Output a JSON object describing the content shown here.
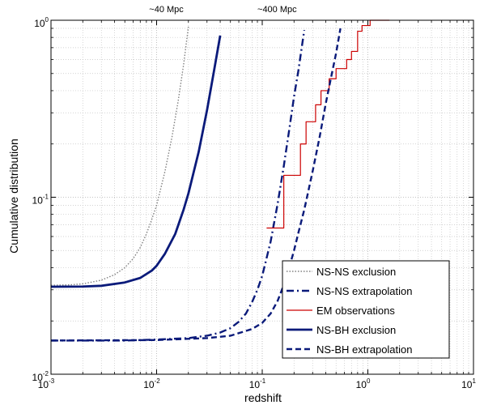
{
  "chart_data": {
    "type": "line",
    "title": "",
    "xlabel": "redshift",
    "ylabel": "Cumulative distribution",
    "xscale": "log",
    "yscale": "log",
    "xlim": [
      0.001,
      10
    ],
    "ylim": [
      0.01,
      1
    ],
    "grid": true,
    "legend_position": "bottom-right",
    "x_ticks": [
      {
        "base": "10",
        "exp": "-3"
      },
      {
        "base": "10",
        "exp": "-2"
      },
      {
        "base": "10",
        "exp": "-1"
      },
      {
        "base": "10",
        "exp": "0"
      },
      {
        "base": "10",
        "exp": "1"
      }
    ],
    "y_ticks": [
      {
        "base": "10",
        "exp": "-2"
      },
      {
        "base": "10",
        "exp": "-1"
      },
      {
        "base": "10",
        "exp": "0"
      }
    ],
    "annotations": [
      {
        "text": "~40 Mpc",
        "x": 0.0085
      },
      {
        "text": "~400 Mpc",
        "x": 0.09
      }
    ],
    "series": [
      {
        "name": "NS-NS exclusion",
        "style": "dotted",
        "color": "#808080",
        "points": [
          [
            0.001,
            0.0318
          ],
          [
            0.0015,
            0.032
          ],
          [
            0.002,
            0.0324
          ],
          [
            0.003,
            0.034
          ],
          [
            0.004,
            0.0365
          ],
          [
            0.005,
            0.04
          ],
          [
            0.006,
            0.045
          ],
          [
            0.007,
            0.052
          ],
          [
            0.008,
            0.062
          ],
          [
            0.009,
            0.075
          ],
          [
            0.01,
            0.09
          ],
          [
            0.012,
            0.14
          ],
          [
            0.014,
            0.22
          ],
          [
            0.016,
            0.35
          ],
          [
            0.018,
            0.56
          ],
          [
            0.02,
            0.92
          ]
        ]
      },
      {
        "name": "NS-NS extrapolation",
        "style": "dash-dot",
        "color": "#0a1a7a",
        "points": [
          [
            0.001,
            0.0155
          ],
          [
            0.005,
            0.0155
          ],
          [
            0.01,
            0.0157
          ],
          [
            0.02,
            0.016
          ],
          [
            0.03,
            0.0165
          ],
          [
            0.04,
            0.0172
          ],
          [
            0.05,
            0.0182
          ],
          [
            0.06,
            0.0198
          ],
          [
            0.07,
            0.022
          ],
          [
            0.08,
            0.0255
          ],
          [
            0.09,
            0.03
          ],
          [
            0.1,
            0.036
          ],
          [
            0.12,
            0.056
          ],
          [
            0.14,
            0.092
          ],
          [
            0.16,
            0.15
          ],
          [
            0.18,
            0.24
          ],
          [
            0.2,
            0.37
          ],
          [
            0.22,
            0.52
          ],
          [
            0.25,
            0.88
          ]
        ]
      },
      {
        "name": "EM observations",
        "style": "step",
        "color": "#cc0000",
        "points": [
          [
            0.11,
            0.067
          ],
          [
            0.16,
            0.067
          ],
          [
            0.16,
            0.133
          ],
          [
            0.23,
            0.133
          ],
          [
            0.23,
            0.2
          ],
          [
            0.26,
            0.2
          ],
          [
            0.26,
            0.267
          ],
          [
            0.32,
            0.267
          ],
          [
            0.32,
            0.333
          ],
          [
            0.36,
            0.333
          ],
          [
            0.36,
            0.4
          ],
          [
            0.43,
            0.4
          ],
          [
            0.43,
            0.467
          ],
          [
            0.5,
            0.467
          ],
          [
            0.5,
            0.533
          ],
          [
            0.63,
            0.533
          ],
          [
            0.63,
            0.6
          ],
          [
            0.7,
            0.6
          ],
          [
            0.7,
            0.667
          ],
          [
            0.8,
            0.667
          ],
          [
            0.8,
            0.867
          ],
          [
            0.88,
            0.867
          ],
          [
            0.88,
            0.933
          ],
          [
            1.05,
            0.933
          ],
          [
            1.05,
            1.0
          ],
          [
            1.6,
            1.0
          ]
        ]
      },
      {
        "name": "NS-BH exclusion",
        "style": "solid",
        "color": "#0a1a7a",
        "points": [
          [
            0.001,
            0.0312
          ],
          [
            0.002,
            0.0313
          ],
          [
            0.003,
            0.0316
          ],
          [
            0.005,
            0.033
          ],
          [
            0.007,
            0.035
          ],
          [
            0.009,
            0.0385
          ],
          [
            0.01,
            0.041
          ],
          [
            0.012,
            0.048
          ],
          [
            0.015,
            0.062
          ],
          [
            0.018,
            0.085
          ],
          [
            0.02,
            0.105
          ],
          [
            0.025,
            0.18
          ],
          [
            0.03,
            0.31
          ],
          [
            0.035,
            0.52
          ],
          [
            0.04,
            0.82
          ]
        ]
      },
      {
        "name": "NS-BH extrapolation",
        "style": "dashed",
        "color": "#0a1a7a",
        "points": [
          [
            0.001,
            0.0155
          ],
          [
            0.01,
            0.0156
          ],
          [
            0.03,
            0.016
          ],
          [
            0.05,
            0.0165
          ],
          [
            0.08,
            0.018
          ],
          [
            0.1,
            0.0195
          ],
          [
            0.12,
            0.022
          ],
          [
            0.14,
            0.026
          ],
          [
            0.16,
            0.032
          ],
          [
            0.18,
            0.04
          ],
          [
            0.2,
            0.05
          ],
          [
            0.22,
            0.063
          ],
          [
            0.25,
            0.085
          ],
          [
            0.3,
            0.14
          ],
          [
            0.35,
            0.22
          ],
          [
            0.4,
            0.34
          ],
          [
            0.45,
            0.48
          ],
          [
            0.5,
            0.65
          ],
          [
            0.55,
            0.9
          ]
        ]
      }
    ]
  }
}
